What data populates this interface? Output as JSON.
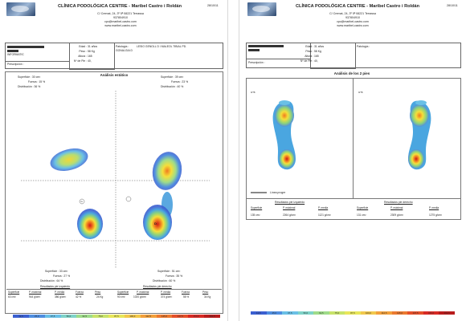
{
  "clinic": {
    "title": "CLÍNICA PODOLÓGICA CENTRE - Maribel Castro i Roldán",
    "address": "C/ Cremat, 24, 3º 5ª   08221  Terrassa",
    "phone": "937804910",
    "email": "cpc@maribel-castro.com",
    "web": "www.maribel-castro.com",
    "date": "28/10/11"
  },
  "patient": {
    "company": "INFORMATIC",
    "prescriber_label": "Prescripción :",
    "age_label": "Edad :",
    "age": "31 años",
    "weight_label": "Peso :",
    "weight": "58 Kg",
    "height_label": "Altura :",
    "height": "165",
    "shoe_label": "Nº de Pie :",
    "shoe": "40,",
    "pathology_label": "Patología :",
    "pathology_line1": "LESIO GENOLL D I MALEOL TIBIAL PD.",
    "pathology_line2": "GONALGIA D"
  },
  "left_page": {
    "section_title": "Análisis estático",
    "left_surface": "Superficie :  30 cm²",
    "left_force": "Fuerza : 15 %",
    "left_distribution": "Distribución :  36 %",
    "right_surface": "Superficie :  39 cm²",
    "right_force": "Fuerza : 23 %",
    "right_distribution": "Distribución :  40 %",
    "bottom_left_surface": "Superficie :   33 cm²",
    "bottom_left_force": "Fuerza : 27 %",
    "bottom_left_distribution": "Distribución : 64 %",
    "bottom_right_surface": "Superficie :   51 cm²",
    "bottom_right_force": "Fuerza : 35 %",
    "bottom_right_distribution": "Distribución : 60 %",
    "results_left_title": "Resultados pie izquierdo",
    "results_right_title": "Resultados pie derecho",
    "headers": [
      "Superficie",
      "P. máximal",
      "P. media",
      "Fuerza",
      "Peso"
    ],
    "left_values": [
      "63 cm²",
      "944 g/cm²",
      "386 g/cm²",
      "42 %",
      "24 Kg"
    ],
    "right_values": [
      "90 cm²",
      "1020 g/cm²",
      "374 g/cm²",
      "58 %",
      "34 Kg"
    ],
    "left_marker": "G",
    "right_marker": "D"
  },
  "right_page": {
    "section_title": "Análisis de los 2 pies",
    "left_label": "0/78",
    "right_label": "0/78",
    "scale_label": "Línea progre",
    "results_left_title": "Resultados pie izquierdo",
    "results_right_title": "Resultados pie derecho",
    "headers": [
      "Superficie",
      "P. máximal",
      "P. media"
    ],
    "left_values": [
      "135 cm²",
      "2264 g/cm²",
      "1121 g/cm²"
    ],
    "right_values": [
      "131 cm²",
      "2309 g/cm²",
      "1275 g/cm²"
    ]
  },
  "legend_values": [
    "12,5",
    "25,0",
    "37,5",
    "50,0",
    "62,5",
    "75,0",
    "87,5",
    "100,0",
    "112,5",
    "125,0",
    "137,5",
    "150,0",
    "162,5"
  ],
  "legend_colors": [
    "#3b5fd0",
    "#4f8ee0",
    "#6ac0e6",
    "#7fd3c8",
    "#9fdc8a",
    "#c8e36a",
    "#e8e65a",
    "#f2c84c",
    "#f2a03c",
    "#ec7a30",
    "#e4502a",
    "#d82a24",
    "#b81c1c"
  ]
}
